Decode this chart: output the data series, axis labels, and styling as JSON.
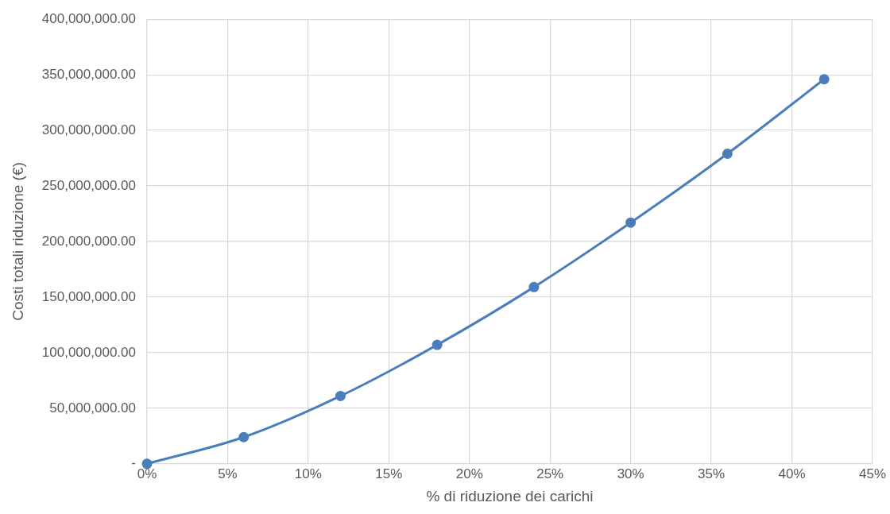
{
  "chart_data": {
    "type": "line",
    "xlabel": "% di riduzione dei carichi",
    "ylabel": "Costi totali riduzione (€)",
    "x": [
      0,
      6,
      12,
      18,
      24,
      30,
      36,
      42
    ],
    "series": [
      {
        "color": "#4a7ebb",
        "values": [
          0,
          24000000,
          61000000,
          107000000,
          159000000,
          217000000,
          279000000,
          346000000
        ]
      }
    ],
    "xlim": [
      0,
      45
    ],
    "xticks": [
      {
        "value": 0,
        "label": "0%"
      },
      {
        "value": 5,
        "label": "5%"
      },
      {
        "value": 10,
        "label": "10%"
      },
      {
        "value": 15,
        "label": "15%"
      },
      {
        "value": 20,
        "label": "20%"
      },
      {
        "value": 25,
        "label": "25%"
      },
      {
        "value": 30,
        "label": "30%"
      },
      {
        "value": 35,
        "label": "35%"
      },
      {
        "value": 40,
        "label": "40%"
      },
      {
        "value": 45,
        "label": "45%"
      }
    ],
    "ylim": [
      0,
      400000000
    ],
    "yticks": [
      {
        "value": 0,
        "label": "-"
      },
      {
        "value": 50000000,
        "label": "50,000,000.00"
      },
      {
        "value": 100000000,
        "label": "100,000,000.00"
      },
      {
        "value": 150000000,
        "label": "150,000,000.00"
      },
      {
        "value": 200000000,
        "label": "200,000,000.00"
      },
      {
        "value": 250000000,
        "label": "250,000,000.00"
      },
      {
        "value": 300000000,
        "label": "300,000,000.00"
      },
      {
        "value": 350000000,
        "label": "350,000,000.00"
      },
      {
        "value": 400000000,
        "label": "400,000,000.00"
      }
    ],
    "grid": true,
    "marker": "circle",
    "line_style": "solid",
    "legend": false
  }
}
